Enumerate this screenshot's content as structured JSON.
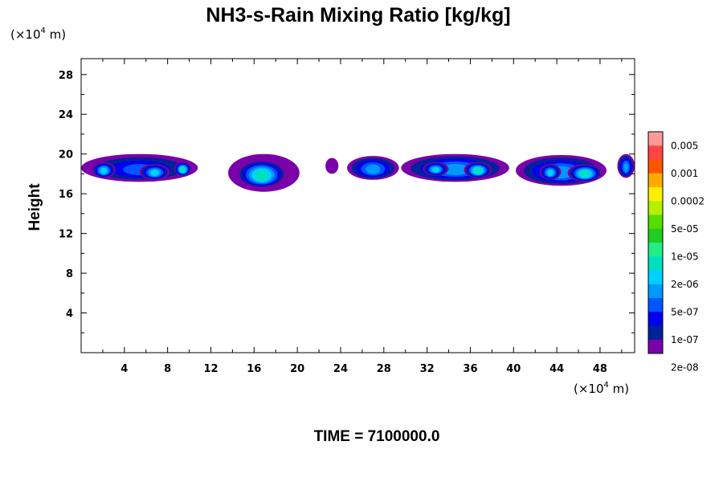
{
  "chart_data": {
    "type": "heatmap",
    "title": "NH3-s-Rain Mixing Ratio [kg/kg]",
    "ylabel": "Height",
    "xlabel": "",
    "x_unit": {
      "prefix": "(×10",
      "exponent": "4",
      "suffix": " m)"
    },
    "y_unit": {
      "prefix": "(×10",
      "exponent": "4",
      "suffix": " m)"
    },
    "xlim": [
      0,
      51.2
    ],
    "ylim": [
      0,
      29.6
    ],
    "x_ticks": [
      4,
      8,
      12,
      16,
      20,
      24,
      28,
      32,
      36,
      40,
      44,
      48
    ],
    "y_ticks": [
      4,
      8,
      12,
      16,
      20,
      24,
      28
    ],
    "colorbar": {
      "labels": [
        "0.005",
        "0.001",
        "0.0002",
        "5e-05",
        "1e-05",
        "2e-06",
        "5e-07",
        "1e-07",
        "2e-08"
      ],
      "colors": [
        "#ff9999",
        "#ff4444",
        "#ff5500",
        "#ffaa00",
        "#ffee00",
        "#b4f000",
        "#55dd00",
        "#22cc22",
        "#22ee88",
        "#00e0c0",
        "#00d0ff",
        "#0099ff",
        "#0055ff",
        "#0000ee",
        "#002299",
        "#7a00aa"
      ]
    },
    "cells": [
      {
        "x0": 0.0,
        "x1": 10.8,
        "y0": 17.2,
        "y1": 20.0,
        "peak": 11.5
      },
      {
        "x0": 1.0,
        "x1": 3.2,
        "y0": 17.6,
        "y1": 19.2,
        "peak": 9.5
      },
      {
        "x0": 5.4,
        "x1": 8.2,
        "y0": 17.4,
        "y1": 19.0,
        "peak": 9.5
      },
      {
        "x0": 8.6,
        "x1": 10.2,
        "y0": 17.8,
        "y1": 19.2,
        "peak": 9.0
      },
      {
        "x0": 13.6,
        "x1": 20.2,
        "y0": 16.2,
        "y1": 20.0,
        "peak": 13.5
      },
      {
        "x0": 14.4,
        "x1": 19.0,
        "y0": 16.6,
        "y1": 19.4,
        "peak": 8.5
      },
      {
        "x0": 22.6,
        "x1": 23.8,
        "y0": 18.0,
        "y1": 19.6,
        "peak": 14.8
      },
      {
        "x0": 24.6,
        "x1": 29.4,
        "y0": 17.4,
        "y1": 19.8,
        "peak": 10.5
      },
      {
        "x0": 29.6,
        "x1": 39.6,
        "y0": 17.2,
        "y1": 20.0,
        "peak": 10.5
      },
      {
        "x0": 31.6,
        "x1": 34.0,
        "y0": 17.8,
        "y1": 19.2,
        "peak": 9.5
      },
      {
        "x0": 35.4,
        "x1": 38.0,
        "y0": 17.6,
        "y1": 19.2,
        "peak": 9.2
      },
      {
        "x0": 40.2,
        "x1": 48.6,
        "y0": 16.8,
        "y1": 19.9,
        "peak": 10.5
      },
      {
        "x0": 42.4,
        "x1": 44.4,
        "y0": 17.4,
        "y1": 19.0,
        "peak": 9.5
      },
      {
        "x0": 45.0,
        "x1": 48.2,
        "y0": 17.2,
        "y1": 19.0,
        "peak": 9.0
      },
      {
        "x0": 49.6,
        "x1": 51.2,
        "y0": 17.6,
        "y1": 20.0,
        "peak": 11.0
      }
    ]
  },
  "footer": {
    "time_label": "TIME = 7100000.0"
  }
}
